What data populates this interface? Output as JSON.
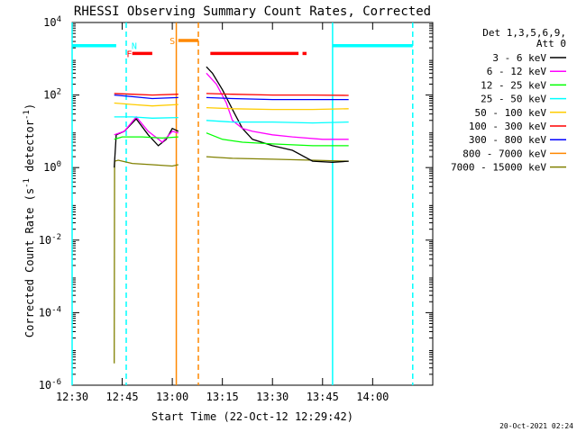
{
  "chart_data": {
    "type": "line",
    "title": "RHESSI Observing Summary Count Rates, Corrected",
    "xlabel": "Start Time (22-Oct-12 12:29:42)",
    "ylabel_parts": [
      "Corrected Count Rate (s",
      "-1",
      " detector",
      "-1",
      ")"
    ],
    "ylog": true,
    "ylim": [
      1e-06,
      10000
    ],
    "xlim": [
      12.5,
      14.3
    ],
    "x_ticks": [
      {
        "v": 12.5,
        "label": "12:30"
      },
      {
        "v": 12.75,
        "label": "12:45"
      },
      {
        "v": 13.0,
        "label": "13:00"
      },
      {
        "v": 13.25,
        "label": "13:15"
      },
      {
        "v": 13.5,
        "label": "13:30"
      },
      {
        "v": 13.75,
        "label": "13:45"
      },
      {
        "v": 14.0,
        "label": "14:00"
      }
    ],
    "y_ticks": [
      {
        "exp": -6,
        "base": "10",
        "sup": "-6"
      },
      {
        "exp": -4,
        "base": "10",
        "sup": "-4"
      },
      {
        "exp": -2,
        "base": "10",
        "sup": "-2"
      },
      {
        "exp": 0,
        "base": "10",
        "sup": "0"
      },
      {
        "exp": 2,
        "base": "10",
        "sup": "2"
      },
      {
        "exp": 4,
        "base": "10",
        "sup": "4"
      }
    ],
    "legend": {
      "placement": "right",
      "header": [
        "Det 1,3,5,6,9,",
        "Att 0"
      ],
      "entries": [
        {
          "label": "3 - 6 keV",
          "color": "#000000"
        },
        {
          "label": "6 - 12 keV",
          "color": "#ff00ff"
        },
        {
          "label": "12 - 25 keV",
          "color": "#00ff00"
        },
        {
          "label": "25 - 50 keV",
          "color": "#00ffff"
        },
        {
          "label": "50 - 100 keV",
          "color": "#ffcc00"
        },
        {
          "label": "100 - 300 keV",
          "color": "#ff0000"
        },
        {
          "label": "300 - 800 keV",
          "color": "#0000ff"
        },
        {
          "label": "800 - 7000 keV",
          "color": "#ff8800"
        },
        {
          "label": "7000 - 15000 keV",
          "color": "#808000"
        }
      ]
    },
    "series": [
      {
        "color": "#808000",
        "segments": [
          {
            "pts": [
              [
                12.71,
                4e-06
              ],
              [
                12.712,
                1.5
              ],
              [
                12.73,
                1.6
              ],
              [
                12.8,
                1.3
              ],
              [
                12.9,
                1.2
              ],
              [
                13.0,
                1.1
              ],
              [
                13.03,
                1.2
              ]
            ]
          },
          {
            "pts": [
              [
                13.17,
                2.0
              ],
              [
                13.3,
                1.8
              ],
              [
                13.5,
                1.7
              ],
              [
                13.7,
                1.6
              ],
              [
                13.88,
                1.5
              ]
            ]
          }
        ]
      },
      {
        "color": "#000000",
        "segments": [
          {
            "pts": [
              [
                12.71,
                1.0
              ],
              [
                12.72,
                8.0
              ],
              [
                12.76,
                10.0
              ],
              [
                12.82,
                22.0
              ],
              [
                12.88,
                8.0
              ],
              [
                12.93,
                4.0
              ],
              [
                12.97,
                6.0
              ],
              [
                13.0,
                12.0
              ],
              [
                13.03,
                10.0
              ]
            ]
          },
          {
            "pts": [
              [
                13.17,
                600.0
              ],
              [
                13.2,
                400.0
              ],
              [
                13.25,
                140.0
              ],
              [
                13.3,
                40.0
              ],
              [
                13.35,
                12.0
              ],
              [
                13.4,
                6.0
              ],
              [
                13.5,
                4.0
              ],
              [
                13.6,
                3.0
              ],
              [
                13.7,
                1.5
              ],
              [
                13.8,
                1.4
              ],
              [
                13.88,
                1.5
              ]
            ]
          }
        ]
      },
      {
        "color": "#ff00ff",
        "segments": [
          {
            "pts": [
              [
                12.71,
                8.0
              ],
              [
                12.76,
                10.0
              ],
              [
                12.82,
                25.0
              ],
              [
                12.88,
                10.0
              ],
              [
                12.95,
                5.0
              ],
              [
                13.0,
                10.0
              ],
              [
                13.03,
                9.0
              ]
            ]
          },
          {
            "pts": [
              [
                13.17,
                400.0
              ],
              [
                13.22,
                200.0
              ],
              [
                13.27,
                60.0
              ],
              [
                13.3,
                20.0
              ],
              [
                13.35,
                12.0
              ],
              [
                13.4,
                10.0
              ],
              [
                13.5,
                8.0
              ],
              [
                13.6,
                7.0
              ],
              [
                13.75,
                6.0
              ],
              [
                13.88,
                6.0
              ]
            ]
          }
        ]
      },
      {
        "color": "#00ff00",
        "segments": [
          {
            "pts": [
              [
                12.71,
                6.0
              ],
              [
                12.75,
                7.0
              ],
              [
                12.85,
                7.0
              ],
              [
                12.95,
                6.5
              ],
              [
                13.03,
                7.0
              ]
            ]
          },
          {
            "pts": [
              [
                13.17,
                9.0
              ],
              [
                13.25,
                6.0
              ],
              [
                13.35,
                5.0
              ],
              [
                13.5,
                4.5
              ],
              [
                13.7,
                4.0
              ],
              [
                13.88,
                4.0
              ]
            ]
          }
        ]
      },
      {
        "color": "#00ffff",
        "segments": [
          {
            "pts": [
              [
                12.71,
                25.0
              ],
              [
                12.8,
                25.0
              ],
              [
                12.9,
                23.0
              ],
              [
                13.03,
                24.0
              ]
            ]
          },
          {
            "pts": [
              [
                13.17,
                20.0
              ],
              [
                13.3,
                18.0
              ],
              [
                13.5,
                18.0
              ],
              [
                13.7,
                17.0
              ],
              [
                13.88,
                18.0
              ]
            ]
          }
        ]
      },
      {
        "color": "#ffcc00",
        "segments": [
          {
            "pts": [
              [
                12.71,
                60.0
              ],
              [
                12.8,
                55.0
              ],
              [
                12.9,
                50.0
              ],
              [
                13.03,
                55.0
              ]
            ]
          },
          {
            "pts": [
              [
                13.17,
                45.0
              ],
              [
                13.3,
                42.0
              ],
              [
                13.5,
                40.0
              ],
              [
                13.7,
                40.0
              ],
              [
                13.88,
                42.0
              ]
            ]
          }
        ]
      },
      {
        "color": "#ff0000",
        "segments": [
          {
            "pts": [
              [
                12.71,
                110.0
              ],
              [
                12.8,
                105.0
              ],
              [
                12.9,
                100.0
              ],
              [
                13.03,
                105.0
              ]
            ]
          },
          {
            "pts": [
              [
                13.17,
                110.0
              ],
              [
                13.3,
                105.0
              ],
              [
                13.5,
                100.0
              ],
              [
                13.7,
                100.0
              ],
              [
                13.88,
                98.0
              ]
            ]
          }
        ]
      },
      {
        "color": "#0000ff",
        "segments": [
          {
            "pts": [
              [
                12.71,
                100.0
              ],
              [
                12.8,
                90.0
              ],
              [
                12.9,
                80.0
              ],
              [
                13.03,
                85.0
              ]
            ]
          },
          {
            "pts": [
              [
                13.17,
                85.0
              ],
              [
                13.3,
                80.0
              ],
              [
                13.5,
                75.0
              ],
              [
                13.7,
                75.0
              ],
              [
                13.88,
                75.0
              ]
            ]
          }
        ]
      }
    ],
    "state_bars": [
      {
        "color": "#00ffff",
        "y": 2300,
        "x0": 12.5,
        "x1": 12.72
      },
      {
        "color": "#00ffff",
        "y": 2300,
        "x0": 13.8,
        "x1": 14.2
      },
      {
        "color": "#ff0000",
        "y": 1400,
        "x0": 12.8,
        "x1": 12.9
      },
      {
        "color": "#ff0000",
        "y": 1400,
        "x0": 13.19,
        "x1": 13.63
      },
      {
        "color": "#ff0000",
        "y": 1400,
        "x0": 13.65,
        "x1": 13.67
      },
      {
        "color": "#ff8800",
        "y": 3200,
        "x0": 13.03,
        "x1": 13.13
      }
    ],
    "vlines": [
      {
        "x": 12.5,
        "color": "#00ffff",
        "dashed": false
      },
      {
        "x": 12.77,
        "color": "#00ffff",
        "dashed": true
      },
      {
        "x": 13.02,
        "color": "#ff8800",
        "dashed": false
      },
      {
        "x": 13.13,
        "color": "#ff8800",
        "dashed": true
      },
      {
        "x": 13.8,
        "color": "#00ffff",
        "dashed": false
      },
      {
        "x": 14.2,
        "color": "#00ffff",
        "dashed": true
      }
    ],
    "markers": [
      {
        "text": "F",
        "x": 12.785,
        "y": 1400,
        "color": "#ff0000"
      },
      {
        "text": "N",
        "x": 12.81,
        "y": 2300,
        "color": "#00ffff"
      },
      {
        "text": "S",
        "x": 13.0,
        "y": 3200,
        "color": "#ff8800"
      }
    ],
    "timestamp": "20-Oct-2021 02:24"
  }
}
